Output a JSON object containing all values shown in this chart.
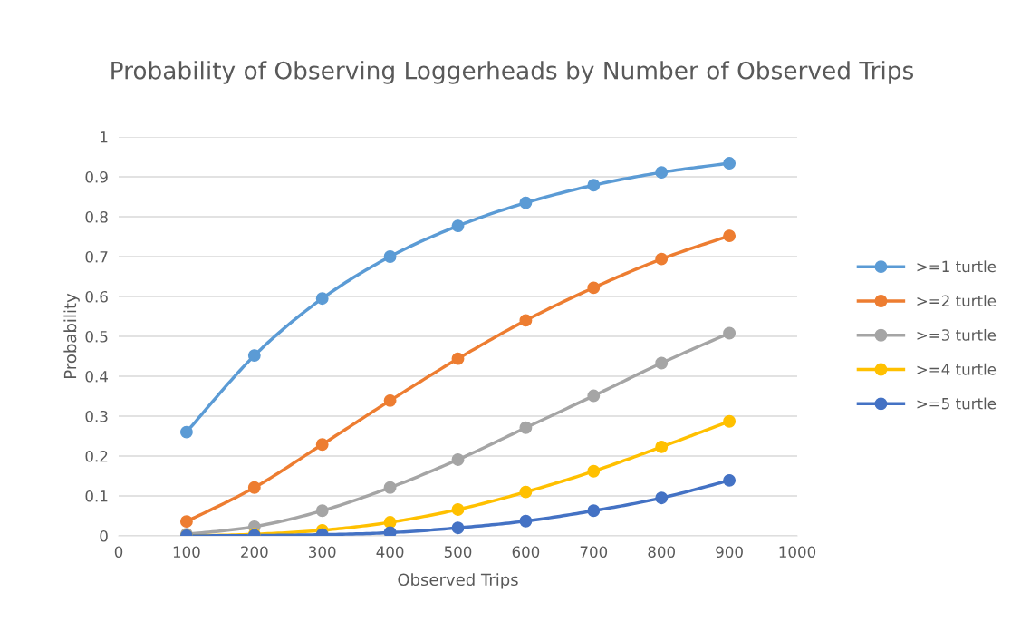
{
  "chart_data": {
    "type": "line",
    "title": "Probability of Observing Loggerheads by Number of Observed Trips",
    "xlabel": "Observed Trips",
    "ylabel": "Probability",
    "x": [
      100,
      200,
      300,
      400,
      500,
      600,
      700,
      800,
      900
    ],
    "series": [
      {
        "name": ">=1 turtle",
        "color": "#5b9bd5",
        "values": [
          0.26,
          0.452,
          0.595,
          0.7,
          0.777,
          0.835,
          0.879,
          0.911,
          0.934
        ]
      },
      {
        "name": ">=2 turtle",
        "color": "#ed7d31",
        "values": [
          0.036,
          0.121,
          0.229,
          0.339,
          0.444,
          0.54,
          0.622,
          0.694,
          0.752
        ]
      },
      {
        "name": ">=3 turtle",
        "color": "#a5a5a5",
        "values": [
          0.004,
          0.023,
          0.063,
          0.121,
          0.191,
          0.271,
          0.351,
          0.433,
          0.508
        ]
      },
      {
        "name": ">=4 turtle",
        "color": "#ffc000",
        "values": [
          0.0,
          0.004,
          0.014,
          0.034,
          0.066,
          0.11,
          0.162,
          0.223,
          0.287
        ]
      },
      {
        "name": ">=5 turtle",
        "color": "#4472c4",
        "values": [
          0.0,
          0.001,
          0.003,
          0.008,
          0.02,
          0.037,
          0.063,
          0.095,
          0.139
        ]
      }
    ],
    "xlim": [
      0,
      1000
    ],
    "xticks": [
      0,
      100,
      200,
      300,
      400,
      500,
      600,
      700,
      800,
      900,
      1000
    ],
    "ylim": [
      0,
      1
    ],
    "yticks": [
      0,
      0.1,
      0.2,
      0.3,
      0.4,
      0.5,
      0.6,
      0.7,
      0.8,
      0.9,
      1
    ],
    "grid": "y",
    "legend": "right",
    "marker": "circle",
    "line_style": "solid"
  }
}
